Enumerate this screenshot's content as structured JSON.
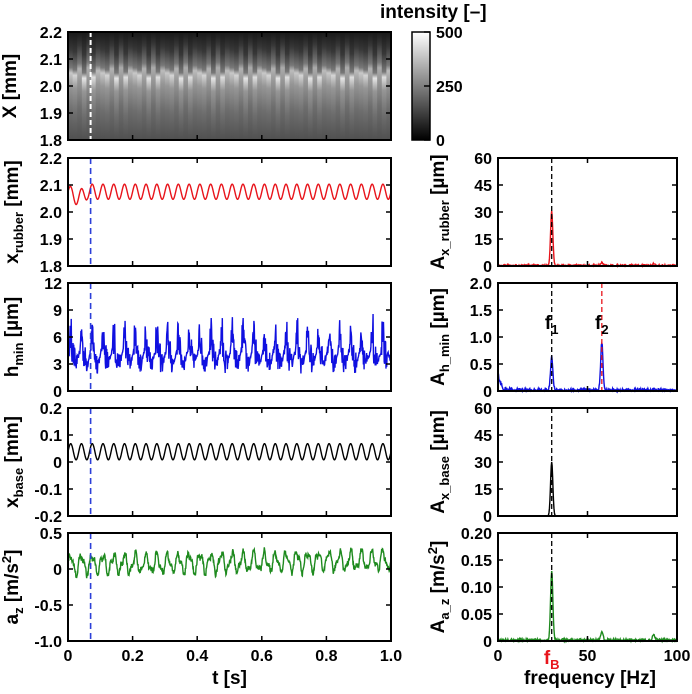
{
  "colors": {
    "red": "#e8141b",
    "blue": "#1010e0",
    "black": "#000000",
    "green": "#1e8a1e",
    "marker_blue": "#2c3fd8",
    "marker_white": "#ffffff",
    "fB": "#e8141b"
  },
  "colorbar": {
    "title": "intensity [–]",
    "ticks": [
      "500",
      "250",
      "0"
    ],
    "min": 0,
    "max": 500
  },
  "x_axis_time": {
    "label": "t [s]",
    "ticks": [
      "0",
      "0.2",
      "0.4",
      "0.6",
      "0.8",
      "1.0"
    ],
    "range": [
      0,
      1
    ],
    "marker_t": 0.07
  },
  "x_axis_freq": {
    "label": "frequency [Hz]",
    "ticks": [
      "0",
      "50",
      "100"
    ],
    "range": [
      0,
      100
    ],
    "fB_label": "f",
    "fB_sub": "B",
    "fB_value": 30,
    "f2_value": 58
  },
  "chart_data": [
    {
      "type": "heatmap",
      "id": "X",
      "ylabel": "X [mm]",
      "ylim": [
        1.8,
        2.2
      ],
      "yticks": [
        "2.2",
        "2.1",
        "2.0",
        "1.9",
        "1.8"
      ],
      "colormap": "gray",
      "description_value_range": [
        0,
        500
      ]
    },
    {
      "type": "line",
      "id": "x_rubber",
      "ylabel_main": "x",
      "ylabel_sub": "rubber",
      "ylabel_unit": " [mm]",
      "ylim": [
        1.8,
        2.2
      ],
      "yticks": [
        "2.2",
        "2.1",
        "2.0",
        "1.9",
        "1.8"
      ],
      "series": [
        {
          "name": "x_rubber",
          "color": "red",
          "mean": 2.075,
          "amp": 0.028,
          "freq": 30
        }
      ]
    },
    {
      "type": "line",
      "id": "h_min",
      "ylabel_main": "h",
      "ylabel_sub": "min",
      "ylabel_unit": " [µm]",
      "ylim": [
        0,
        12
      ],
      "yticks": [
        "12",
        "9",
        "6",
        "3",
        "0"
      ],
      "series": [
        {
          "name": "h_min",
          "color": "blue",
          "mean": 4.0,
          "amp": 1.4,
          "freq": 30
        }
      ]
    },
    {
      "type": "line",
      "id": "x_base",
      "ylabel_main": "x",
      "ylabel_sub": "base",
      "ylabel_unit": " [mm]",
      "ylim": [
        -0.2,
        0.2
      ],
      "yticks": [
        "0.2",
        "0.1",
        "0",
        "-0.1",
        "-0.2"
      ],
      "series": [
        {
          "name": "x_base",
          "color": "black",
          "mean": 0.038,
          "amp": 0.03,
          "freq": 30
        }
      ]
    },
    {
      "type": "line",
      "id": "a_z",
      "ylabel_main": "a",
      "ylabel_sub": "z",
      "ylabel_unit": " [m/s",
      "ylabel_sup": "2",
      "ylabel_end": "]",
      "ylim": [
        -1.0,
        0.5
      ],
      "yticks": [
        "0.5",
        "0",
        "-0.5",
        "-1.0"
      ],
      "series": [
        {
          "name": "a_z",
          "color": "green",
          "mean": 0.06,
          "amp": 0.12,
          "freq": 30
        }
      ]
    },
    {
      "type": "line",
      "id": "A_x_rubber",
      "ylabel_main": "A",
      "ylabel_sub": "x_rubber",
      "ylabel_unit": " [µm]",
      "ylim": [
        0,
        60
      ],
      "yticks": [
        "60",
        "45",
        "30",
        "15",
        "0"
      ],
      "series": [
        {
          "name": "spectrum",
          "color": "red",
          "peaks": [
            {
              "f": 30,
              "a": 30
            },
            {
              "f": 58,
              "a": 1.5
            },
            {
              "f": 87,
              "a": 1
            }
          ],
          "noise": 1.2
        }
      ]
    },
    {
      "type": "line",
      "id": "A_h_min",
      "ylabel_main": "A",
      "ylabel_sub": "h_min",
      "ylabel_unit": " [µm]",
      "ylim": [
        0,
        2.0
      ],
      "yticks": [
        "2.0",
        "1.5",
        "1.0",
        "0.5",
        "0"
      ],
      "annotations": [
        {
          "text": "f",
          "sub": "1",
          "f": 30
        },
        {
          "text": "f",
          "sub": "2",
          "f": 58
        }
      ],
      "series": [
        {
          "name": "spectrum",
          "color": "blue",
          "peaks": [
            {
              "f": 30,
              "a": 0.62
            },
            {
              "f": 58,
              "a": 0.88
            }
          ],
          "noise": 0.07
        }
      ]
    },
    {
      "type": "line",
      "id": "A_x_base",
      "ylabel_main": "A",
      "ylabel_sub": "x_base",
      "ylabel_unit": " [µm]",
      "ylim": [
        0,
        60
      ],
      "yticks": [
        "60",
        "45",
        "30",
        "15",
        "0"
      ],
      "series": [
        {
          "name": "spectrum",
          "color": "black",
          "peaks": [
            {
              "f": 30,
              "a": 30
            }
          ],
          "noise": 0.2
        }
      ]
    },
    {
      "type": "line",
      "id": "A_a_z",
      "ylabel_main": "A",
      "ylabel_sub": "a_z",
      "ylabel_unit": " [m/s",
      "ylabel_sup": "2",
      "ylabel_end": "]",
      "ylim": [
        0,
        0.2
      ],
      "yticks": [
        "0.20",
        "0.15",
        "0.10",
        "0.05",
        "0"
      ],
      "series": [
        {
          "name": "spectrum",
          "color": "green",
          "peaks": [
            {
              "f": 30,
              "a": 0.128
            },
            {
              "f": 58,
              "a": 0.016
            },
            {
              "f": 87,
              "a": 0.01
            }
          ],
          "noise": 0.006
        }
      ]
    }
  ]
}
